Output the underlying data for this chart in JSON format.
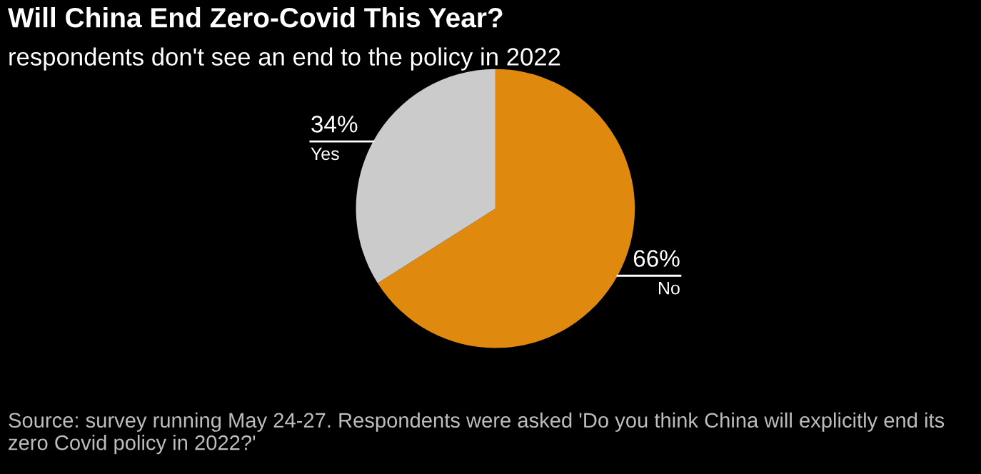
{
  "chart_data": {
    "type": "pie",
    "title": "Will China End Zero-Covid This Year?",
    "subtitle": "respondents don't see an end to the policy in 2022",
    "categories": [
      "No",
      "Yes"
    ],
    "values": [
      66,
      34
    ],
    "colors": [
      "#e0890f",
      "#cbcbcb"
    ],
    "value_labels": [
      "66%",
      "34%"
    ],
    "annotations": [
      "Source: survey running May 24-27. Respondents were asked 'Do you think China will explicitly end its zero Covid policy in 2022?'"
    ]
  }
}
